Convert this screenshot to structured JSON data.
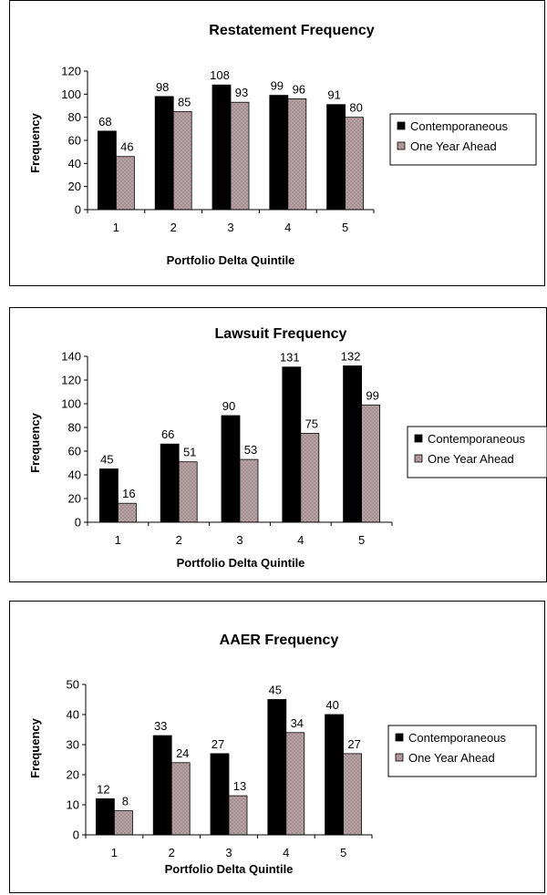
{
  "chart_data": [
    {
      "type": "bar",
      "title": "Restatement Frequency",
      "xlabel": "Portfolio Delta Quintile",
      "ylabel": "Frequency",
      "categories": [
        "1",
        "2",
        "3",
        "4",
        "5"
      ],
      "ylim": [
        0,
        120
      ],
      "yticks": [
        "0",
        "20",
        "40",
        "60",
        "80",
        "100",
        "120"
      ],
      "grid": false,
      "legend_position": "right",
      "series": [
        {
          "name": "Contemporaneous",
          "values": [
            68,
            98,
            108,
            99,
            91
          ],
          "color": "#000000"
        },
        {
          "name": "One Year Ahead",
          "values": [
            46,
            85,
            93,
            96,
            80
          ],
          "color": "#a8a8a8"
        }
      ]
    },
    {
      "type": "bar",
      "title": "Lawsuit Frequency",
      "xlabel": "Portfolio Delta Quintile",
      "ylabel": "Frequency",
      "categories": [
        "1",
        "2",
        "3",
        "4",
        "5"
      ],
      "ylim": [
        0,
        140
      ],
      "yticks": [
        "0",
        "20",
        "40",
        "60",
        "80",
        "100",
        "120",
        "140"
      ],
      "grid": false,
      "legend_position": "right",
      "series": [
        {
          "name": "Contemporaneous",
          "values": [
            45,
            66,
            90,
            131,
            132
          ],
          "color": "#000000"
        },
        {
          "name": "One Year Ahead",
          "values": [
            16,
            51,
            53,
            75,
            99
          ],
          "color": "#a8a8a8"
        }
      ]
    },
    {
      "type": "bar",
      "title": "AAER Frequency",
      "xlabel": "Portfolio Delta Quintile",
      "ylabel": "Frequency",
      "categories": [
        "1",
        "2",
        "3",
        "4",
        "5"
      ],
      "ylim": [
        0,
        50
      ],
      "yticks": [
        "0",
        "10",
        "20",
        "30",
        "40",
        "50"
      ],
      "grid": false,
      "legend_position": "right",
      "series": [
        {
          "name": "Contemporaneous",
          "values": [
            12,
            33,
            27,
            45,
            40
          ],
          "color": "#000000"
        },
        {
          "name": "One Year Ahead",
          "values": [
            8,
            24,
            13,
            34,
            27
          ],
          "color": "#a8a8a8"
        }
      ]
    }
  ]
}
